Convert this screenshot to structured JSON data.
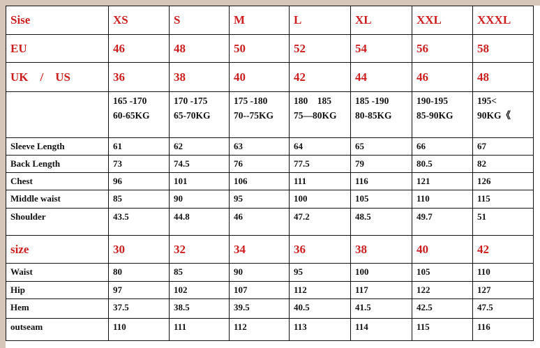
{
  "colors": {
    "accent": "#cc1f1f",
    "text": "#111111",
    "background": "#d6c6b9"
  },
  "header_rows": [
    {
      "label": "Sise",
      "values": [
        "XS",
        "S",
        "M",
        "L",
        "XL",
        "XXL",
        "XXXL"
      ]
    },
    {
      "label": "EU",
      "values": [
        "46",
        "48",
        "50",
        "52",
        "54",
        "56",
        "58"
      ]
    },
    {
      "label": "UK    /    US",
      "values": [
        "36",
        "38",
        "40",
        "42",
        "44",
        "46",
        "48"
      ]
    }
  ],
  "height_weight": [
    [
      "165 -170",
      "60-65KG"
    ],
    [
      "170 -175",
      "65-70KG"
    ],
    [
      "175 -180",
      "70--75KG"
    ],
    [
      "180    185",
      "75—80KG"
    ],
    [
      "185 -190",
      "80-85KG"
    ],
    [
      "190-195",
      "85-90KG"
    ],
    [
      "195<",
      "90KG《"
    ]
  ],
  "top_measurements": [
    {
      "label": "Sleeve Length",
      "values": [
        "61",
        "62",
        "63",
        "64",
        "65",
        "66",
        "67"
      ]
    },
    {
      "label": "Back Length",
      "values": [
        "73",
        "74.5",
        "76",
        "77.5",
        "79",
        "80.5",
        "82"
      ]
    },
    {
      "label": "Chest",
      "values": [
        "96",
        "101",
        "106",
        "111",
        "116",
        "121",
        "126"
      ]
    },
    {
      "label": "Middle waist",
      "values": [
        "85",
        "90",
        "95",
        "100",
        "105",
        "110",
        "115"
      ]
    },
    {
      "label": "Shoulder",
      "values": [
        "43.5",
        "44.8",
        "46",
        "47.2",
        "48.5",
        "49.7",
        "51"
      ]
    }
  ],
  "size_row": {
    "label": "size",
    "values": [
      "30",
      "32",
      "34",
      "36",
      "38",
      "40",
      "42"
    ]
  },
  "bottom_measurements": [
    {
      "label": "Waist",
      "values": [
        "80",
        "85",
        "90",
        "95",
        "100",
        "105",
        "110"
      ]
    },
    {
      "label": "Hip",
      "values": [
        "97",
        "102",
        "107",
        "112",
        "117",
        "122",
        "127"
      ]
    },
    {
      "label": "Hem",
      "values": [
        "37.5",
        "38.5",
        "39.5",
        "40.5",
        "41.5",
        "42.5",
        "47.5"
      ]
    },
    {
      "label": "outseam",
      "values": [
        "110",
        "111",
        "112",
        "113",
        "114",
        "115",
        "116"
      ]
    }
  ]
}
